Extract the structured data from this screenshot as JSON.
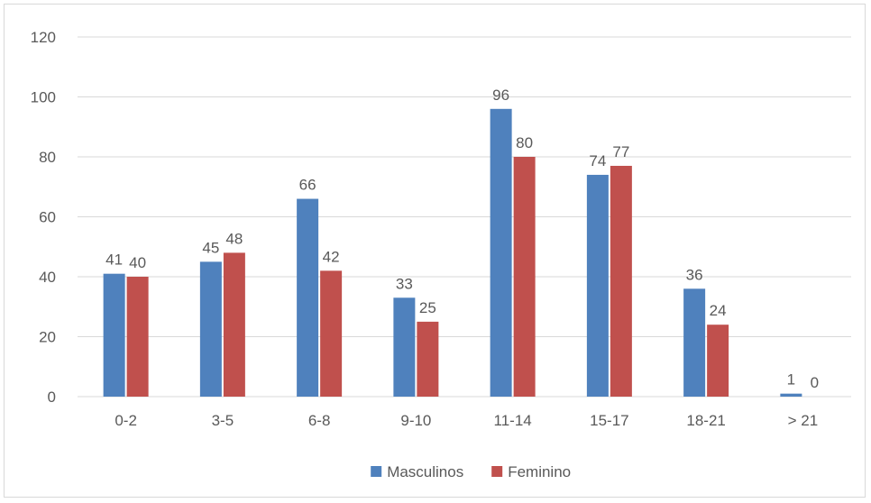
{
  "chart_data": {
    "type": "bar",
    "title": "",
    "xlabel": "",
    "ylabel": "",
    "categories": [
      "0-2",
      "3-5",
      "6-8",
      "9-10",
      "11-14",
      "15-17",
      "18-21",
      "> 21"
    ],
    "series": [
      {
        "name": "Masculinos",
        "color": "#4f81bd",
        "values": [
          41,
          45,
          66,
          33,
          96,
          74,
          36,
          1
        ]
      },
      {
        "name": "Feminino",
        "color": "#c0504d",
        "values": [
          40,
          48,
          42,
          25,
          80,
          77,
          24,
          0
        ]
      }
    ],
    "ylim": [
      0,
      120
    ],
    "yticks": [
      0,
      20,
      40,
      60,
      80,
      100,
      120
    ],
    "grid": true,
    "data_labels": true,
    "legend_position": "bottom"
  }
}
